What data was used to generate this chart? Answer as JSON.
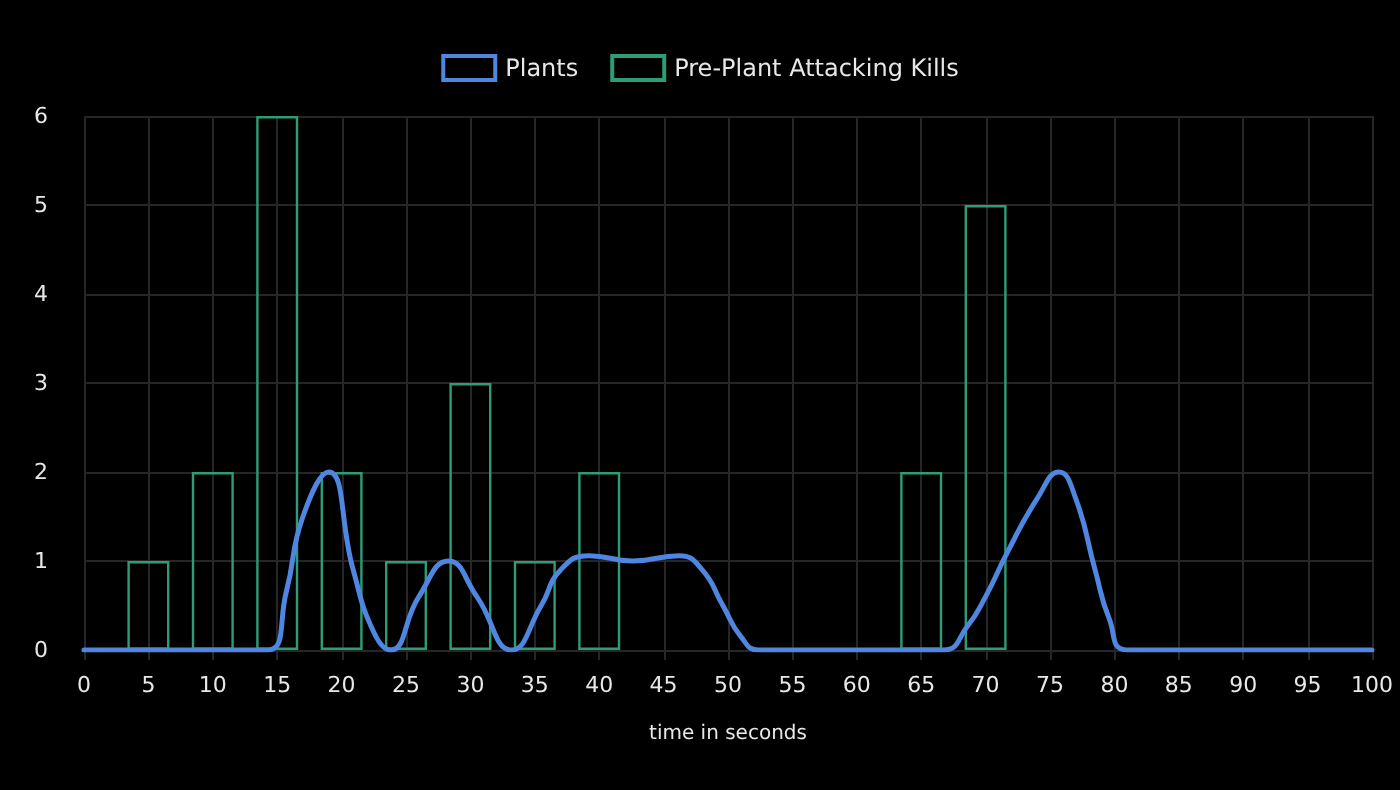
{
  "chart_data": {
    "type": "bar",
    "xlabel": "time in seconds",
    "xlim": [
      0,
      100
    ],
    "xticks": [
      0,
      5,
      10,
      15,
      20,
      25,
      30,
      35,
      40,
      45,
      50,
      55,
      60,
      65,
      70,
      75,
      80,
      85,
      90,
      95,
      100
    ],
    "ylim": [
      0,
      6
    ],
    "yticks": [
      0,
      1,
      2,
      3,
      4,
      5,
      6
    ],
    "grid": true,
    "legend": "top",
    "series": [
      {
        "name": "Plants",
        "type": "line",
        "color": "#4f86e0",
        "marker": "none",
        "x": [
          0,
          14.3,
          15.7,
          17,
          19,
          20.9,
          22.5,
          23.8,
          26,
          28.3,
          30.5,
          33.2,
          35.5,
          37,
          39.2,
          42.6,
          46.2,
          48,
          49.6,
          51,
          52.4,
          66.7,
          68.6,
          70,
          71.7,
          74,
          75.7,
          77,
          78.5,
          79.6,
          81,
          100
        ],
        "values": [
          0,
          0,
          0.65,
          1.5,
          2,
          0.9,
          0.2,
          0,
          0.6,
          1,
          0.6,
          0,
          0.5,
          0.9,
          1.06,
          1,
          1.06,
          0.9,
          0.5,
          0.15,
          0,
          0,
          0.27,
          0.6,
          1.1,
          1.7,
          2,
          1.7,
          0.9,
          0.35,
          0,
          0
        ]
      },
      {
        "name": "Pre-Plant Attacking Kills",
        "color": "#2e9c78",
        "x": [
          5,
          10,
          15,
          20,
          25,
          30,
          35,
          40,
          65,
          70
        ],
        "values": [
          1,
          2,
          6,
          2,
          1,
          3,
          1,
          2,
          2,
          5
        ]
      }
    ]
  }
}
